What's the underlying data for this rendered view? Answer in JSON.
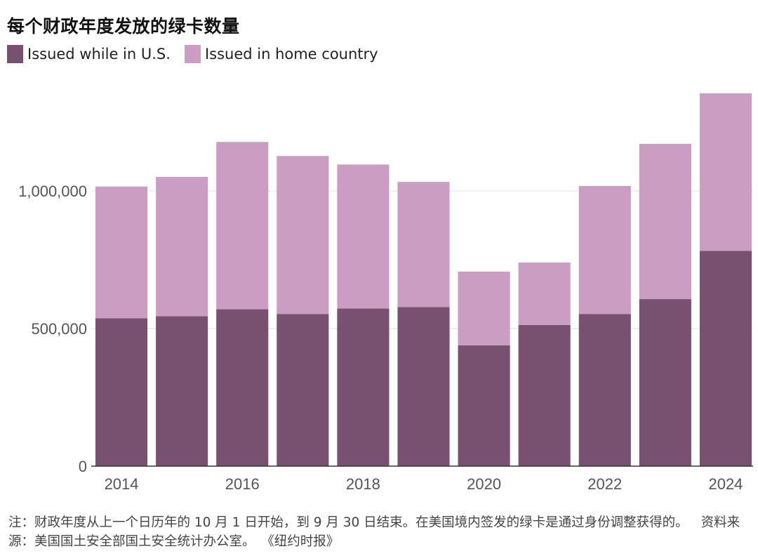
{
  "header": {
    "title": "每个财政年度发放的绿卡数量"
  },
  "legend": [
    {
      "label": "Issued while in U.S.",
      "color": "#785070"
    },
    {
      "label": "Issued in home country",
      "color": "#cb9dc3"
    }
  ],
  "footer": {
    "note": "注：财政年度从上一个日历年的 10 月 1 日开始，到 9 月 30 日结束。在美国境内签发的绿卡是通过身份调整获得的。",
    "source": "资料来源：美国国土安全部国土安全统计办公室。",
    "credit": "《纽约时报》"
  },
  "chart_data": {
    "type": "bar",
    "stacked": true,
    "categories": [
      "2014",
      "2015",
      "2016",
      "2017",
      "2018",
      "2019",
      "2020",
      "2021",
      "2022",
      "2023",
      "2024"
    ],
    "x_tick_labels": [
      "2014",
      "2016",
      "2018",
      "2020",
      "2022",
      "2024"
    ],
    "y_tick_labels": [
      "0",
      "500,000",
      "1,000,000"
    ],
    "y_ticks": [
      0,
      500000,
      1000000
    ],
    "ylim": [
      0,
      1400000
    ],
    "grid": true,
    "legend_position": "top-left",
    "series": [
      {
        "name": "Issued while in U.S.",
        "color": "#785070",
        "values": [
          537000,
          545000,
          570000,
          553000,
          573000,
          578000,
          439000,
          513000,
          553000,
          607000,
          782000
        ]
      },
      {
        "name": "Issued in home country",
        "color": "#cb9dc3",
        "values": [
          479000,
          506000,
          608000,
          574000,
          523000,
          455000,
          268000,
          227000,
          465000,
          564000,
          573000
        ]
      }
    ]
  }
}
